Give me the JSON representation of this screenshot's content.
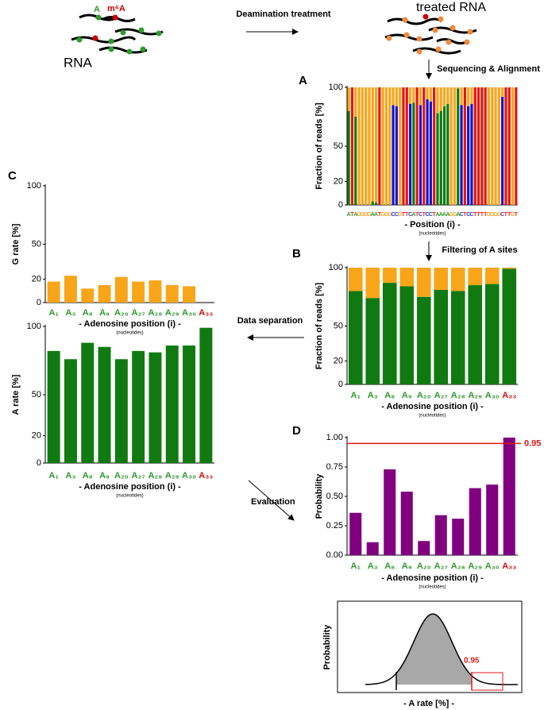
{
  "annotations": {
    "a_label": "A",
    "m6a_label": "m⁶A",
    "rna_label": "RNA",
    "deamination": "Deamination treatment",
    "treated_rna": "treated RNA",
    "sequencing": "Sequencing & Alignment",
    "filtering": "Filtering of A sites",
    "data_separation": "Data separation",
    "evaluation": "Evaluation",
    "density_ylabel": "Probability",
    "density_threshold": "0.95",
    "density_xlabel": "- A rate [%] -"
  },
  "chart_data": [
    {
      "type": "bar",
      "panel": "A",
      "stacked": true,
      "ylabel": "Fraction of reads [%]",
      "xlabel": "- Position (i) -",
      "xnote": "(nucleotides)",
      "categories": [
        "A",
        "T",
        "A",
        "G",
        "G",
        "G",
        "G",
        "A",
        "A",
        "T",
        "G",
        "G",
        "G",
        "C",
        "C",
        "G",
        "T",
        "T",
        "C",
        "A",
        "T",
        "C",
        "T",
        "C",
        "C",
        "T",
        "A",
        "A",
        "A",
        "A",
        "G",
        "G",
        "A",
        "C",
        "T",
        "C",
        "C",
        "T",
        "T",
        "T",
        "T",
        "G",
        "G",
        "G",
        "G",
        "C",
        "T",
        "T",
        "G",
        "T"
      ],
      "category_colors": [
        "#2e9b2e",
        "#e8201c",
        "#2e9b2e",
        "#f5a623",
        "#f5a623",
        "#f5a623",
        "#f5a623",
        "#2e9b2e",
        "#2e9b2e",
        "#e8201c",
        "#f5a623",
        "#f5a623",
        "#f5a623",
        "#1f3fcf",
        "#1f3fcf",
        "#f5a623",
        "#e8201c",
        "#e8201c",
        "#1f3fcf",
        "#2e9b2e",
        "#e8201c",
        "#1f3fcf",
        "#e8201c",
        "#1f3fcf",
        "#1f3fcf",
        "#e8201c",
        "#2e9b2e",
        "#2e9b2e",
        "#2e9b2e",
        "#2e9b2e",
        "#f5a623",
        "#f5a623",
        "#2e9b2e",
        "#1f3fcf",
        "#e8201c",
        "#1f3fcf",
        "#1f3fcf",
        "#e8201c",
        "#e8201c",
        "#e8201c",
        "#e8201c",
        "#f5a623",
        "#f5a623",
        "#f5a623",
        "#f5a623",
        "#1f3fcf",
        "#e8201c",
        "#e8201c",
        "#f5a623",
        "#e8201c"
      ],
      "series": [
        {
          "color": "#107a10",
          "values": [
            80,
            0,
            75,
            0,
            0,
            0,
            0,
            3,
            2,
            0,
            0,
            0,
            0,
            0,
            0,
            0,
            0,
            0,
            0,
            87,
            0,
            0,
            0,
            0,
            0,
            0,
            78,
            80,
            84,
            86,
            0,
            0,
            99,
            0,
            0,
            0,
            0,
            0,
            0,
            0,
            0,
            0,
            0,
            0,
            0,
            0,
            0,
            0,
            0,
            0
          ]
        },
        {
          "color": "#1414c8",
          "values": [
            0,
            0,
            0,
            0,
            0,
            0,
            0,
            0,
            0,
            0,
            0,
            0,
            0,
            85,
            84,
            0,
            0,
            0,
            86,
            0,
            0,
            85,
            0,
            90,
            88,
            0,
            0,
            0,
            0,
            0,
            0,
            0,
            0,
            85,
            0,
            84,
            86,
            0,
            0,
            0,
            0,
            0,
            0,
            0,
            0,
            92,
            0,
            0,
            0,
            0
          ]
        },
        {
          "color": "#f9a51a",
          "values": [
            20,
            0,
            25,
            100,
            100,
            100,
            100,
            97,
            98,
            0,
            100,
            100,
            100,
            15,
            16,
            100,
            0,
            0,
            14,
            13,
            0,
            15,
            0,
            10,
            12,
            0,
            22,
            20,
            16,
            14,
            100,
            100,
            1,
            15,
            0,
            16,
            14,
            0,
            0,
            0,
            0,
            100,
            100,
            100,
            100,
            8,
            0,
            0,
            100,
            0
          ]
        },
        {
          "color": "#e8140c",
          "values": [
            0,
            100,
            0,
            0,
            0,
            0,
            0,
            0,
            0,
            100,
            0,
            0,
            0,
            0,
            0,
            0,
            100,
            100,
            0,
            0,
            100,
            0,
            100,
            0,
            0,
            100,
            0,
            0,
            0,
            0,
            0,
            0,
            0,
            0,
            100,
            0,
            0,
            100,
            100,
            100,
            100,
            0,
            0,
            0,
            0,
            0,
            100,
            100,
            0,
            100
          ]
        }
      ],
      "ylim": [
        0,
        100
      ],
      "yticks": [
        0,
        20,
        50,
        100
      ]
    },
    {
      "type": "bar",
      "panel": "B",
      "stacked": true,
      "ylabel": "Fraction of reads [%]",
      "xlabel": "- Adenosine position (i) -",
      "xnote": "(nucleotides)",
      "categories": [
        "A₁",
        "A₃",
        "A₈",
        "A₉",
        "A₂₀",
        "A₂₇",
        "A₂₈",
        "A₂₉",
        "A₃₀",
        "A₃₃"
      ],
      "category_colors": [
        "#2e9b2e",
        "#2e9b2e",
        "#2e9b2e",
        "#2e9b2e",
        "#2e9b2e",
        "#2e9b2e",
        "#2e9b2e",
        "#2e9b2e",
        "#2e9b2e",
        "#d41010"
      ],
      "series": [
        {
          "color": "#107a10",
          "values": [
            80,
            74,
            87,
            84,
            75,
            81,
            80,
            85,
            86,
            99
          ]
        },
        {
          "color": "#f9a51a",
          "values": [
            20,
            26,
            13,
            16,
            25,
            19,
            20,
            15,
            14,
            1
          ]
        }
      ],
      "ylim": [
        0,
        100
      ],
      "yticks": [
        0,
        20,
        50,
        100
      ]
    },
    {
      "type": "bar",
      "panel": "C",
      "ylabel": "G rate [%]",
      "xlabel": "- Adenosine position (i) -",
      "xnote": "(nucleotides)",
      "categories": [
        "A₁",
        "A₃",
        "A₈",
        "A₉",
        "A₂₀",
        "A₂₇",
        "A₂₈",
        "A₂₉",
        "A₃₀",
        "A₃₃"
      ],
      "category_colors": [
        "#2e9b2e",
        "#2e9b2e",
        "#2e9b2e",
        "#2e9b2e",
        "#2e9b2e",
        "#2e9b2e",
        "#2e9b2e",
        "#2e9b2e",
        "#2e9b2e",
        "#d41010"
      ],
      "values": [
        18,
        23,
        12,
        15,
        22,
        18,
        19,
        15,
        14,
        0
      ],
      "color": "#f9a51a",
      "ylim": [
        0,
        100
      ],
      "yticks": [
        0,
        20,
        50,
        100
      ]
    },
    {
      "type": "bar",
      "ylabel": "A rate [%]",
      "xlabel": "- Adenosine position (i) -",
      "xnote": "(nucleotides)",
      "categories": [
        "A₁",
        "A₃",
        "A₈",
        "A₉",
        "A₂₀",
        "A₂₇",
        "A₂₈",
        "A₂₉",
        "A₃₀",
        "A₃₃"
      ],
      "category_colors": [
        "#2e9b2e",
        "#2e9b2e",
        "#2e9b2e",
        "#2e9b2e",
        "#2e9b2e",
        "#2e9b2e",
        "#2e9b2e",
        "#2e9b2e",
        "#2e9b2e",
        "#d41010"
      ],
      "values": [
        82,
        76,
        88,
        85,
        76,
        82,
        81,
        86,
        86,
        99
      ],
      "color": "#107a10",
      "ylim": [
        0,
        100
      ],
      "yticks": [
        0,
        20,
        50,
        100
      ]
    },
    {
      "type": "bar",
      "panel": "D",
      "ylabel": "Probability",
      "xlabel": "- Adenosine position (i) -",
      "xnote": "(nucleotides)",
      "categories": [
        "A₁",
        "A₃",
        "A₈",
        "A₉",
        "A₂₀",
        "A₂₇",
        "A₂₈",
        "A₂₉",
        "A₃₀",
        "A₃₃"
      ],
      "category_colors": [
        "#2e9b2e",
        "#2e9b2e",
        "#2e9b2e",
        "#2e9b2e",
        "#2e9b2e",
        "#2e9b2e",
        "#2e9b2e",
        "#2e9b2e",
        "#2e9b2e",
        "#d41010"
      ],
      "values": [
        0.36,
        0.11,
        0.73,
        0.54,
        0.12,
        0.34,
        0.31,
        0.57,
        0.6,
        1.0
      ],
      "color": "#800080",
      "ylim": [
        0,
        1
      ],
      "yticks": [
        {
          "value": 0,
          "label": "0.00"
        },
        {
          "value": 0.25,
          "label": "0.25"
        },
        {
          "value": 0.5,
          "label": "0.50"
        },
        {
          "value": 0.75,
          "label": "0.75"
        },
        {
          "value": 1,
          "label": "1.00"
        }
      ],
      "threshold": 0.95,
      "threshold_color": "#e01818"
    }
  ]
}
